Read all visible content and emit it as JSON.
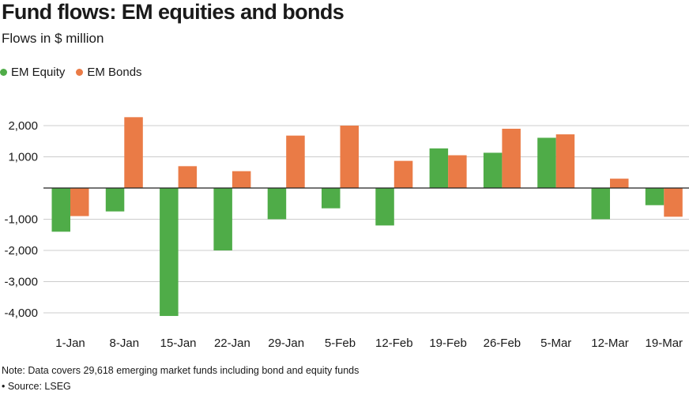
{
  "title": "Fund flows: EM equities and bonds",
  "subtitle": "Flows in $ million",
  "note": "Note: Data covers 29,618 emerging market funds including bond and equity funds",
  "source": "• Source: LSEG",
  "colors": {
    "equity": "#4fac48",
    "bonds": "#ea7b46",
    "grid": "#cccccc",
    "zero": "#222222"
  },
  "chart_data": {
    "type": "bar",
    "categories": [
      "1-Jan",
      "8-Jan",
      "15-Jan",
      "22-Jan",
      "29-Jan",
      "5-Feb",
      "12-Feb",
      "19-Feb",
      "26-Feb",
      "5-Mar",
      "12-Mar",
      "19-Mar"
    ],
    "series": [
      {
        "name": "EM Equity",
        "color": "#4fac48",
        "values": [
          -1400,
          -750,
          -4100,
          -2000,
          -1000,
          -650,
          -1200,
          1270,
          1130,
          1610,
          -1000,
          -550
        ]
      },
      {
        "name": "EM Bonds",
        "color": "#ea7b46",
        "values": [
          -900,
          2270,
          700,
          540,
          1680,
          2000,
          870,
          1050,
          1900,
          1720,
          300,
          -920
        ]
      }
    ],
    "yticks": [
      2000,
      1000,
      -1000,
      -2000,
      -3000,
      -4000
    ],
    "ytick_labels": [
      "2,000",
      "1,000",
      "-1,000",
      "-2,000",
      "-3,000",
      "-4,000"
    ],
    "ylim": [
      -4400,
      2600
    ],
    "grid": true,
    "legend": "top-left"
  }
}
